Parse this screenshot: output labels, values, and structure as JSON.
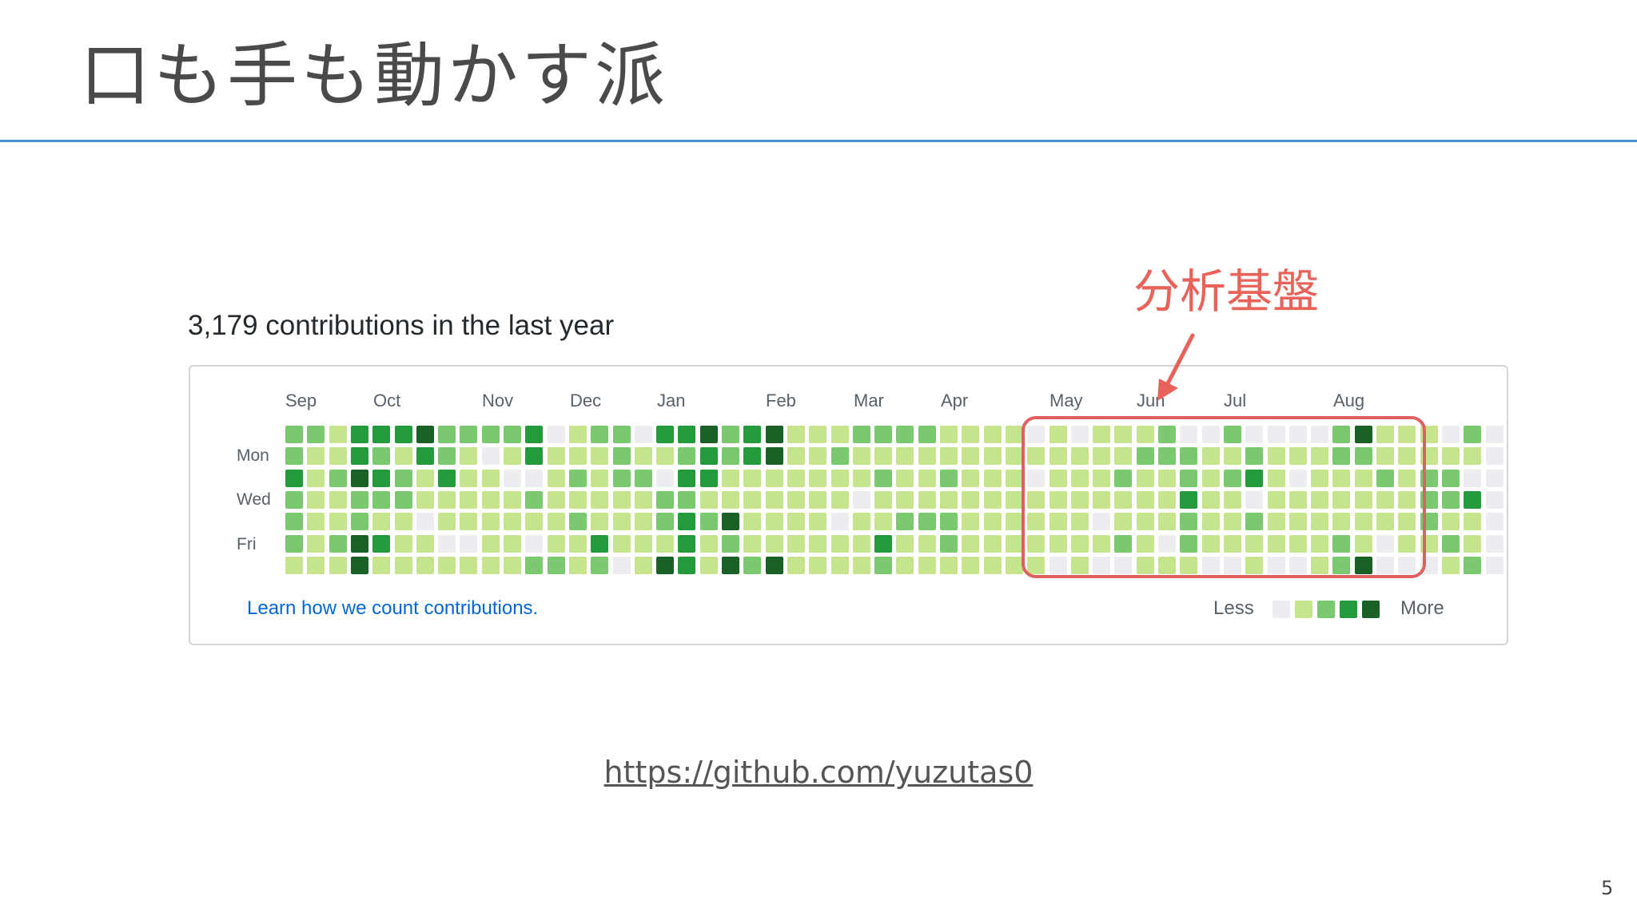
{
  "slide": {
    "title": "口も手も動かす派",
    "page_number": "5",
    "url": "https://github.com/yuzutas0"
  },
  "contributions": {
    "heading": "3,179 contributions in the last year",
    "months": [
      "Sep",
      "Oct",
      "Nov",
      "Dec",
      "Jan",
      "Feb",
      "Mar",
      "Apr",
      "May",
      "Jun",
      "Jul",
      "Aug"
    ],
    "days": [
      "Mon",
      "Wed",
      "Fri"
    ],
    "learn_link": "Learn how we count contributions.",
    "legend_less": "Less",
    "legend_more": "More",
    "colors": [
      "#ebedf0",
      "#c6e48b",
      "#7bc96f",
      "#239a3b",
      "#196127"
    ],
    "levels": [
      "2232221",
      "2111111",
      "1121121",
      "3342244",
      "3232131",
      "3122111",
      "4311011",
      "2231101",
      "2111101",
      "2011111",
      "2101111",
      "3302102",
      "0111112",
      "1121211",
      "2111132",
      "2221110",
      "0121111",
      "3102214",
      "3232333",
      "4331211",
      "2211424",
      "3311112",
      "4411114",
      "1111111",
      "1111111",
      "1211011",
      "2110111",
      "2121132",
      "2111211",
      "2111211",
      "1121221",
      "1111111",
      "1111111",
      "1111111",
      "0101111",
      "1111110",
      "0111111",
      "1111010",
      "1121120",
      "1211111",
      "2211101",
      "0223221",
      "0111110",
      "2121110",
      "0230211",
      "0111110",
      "0101110",
      "0111111",
      "2211122",
      "4211114",
      "1121100",
      "1111110",
      "1122210",
      "0122121",
      "2103112",
      "0000000"
    ]
  },
  "annotation": {
    "label": "分析基盤"
  }
}
